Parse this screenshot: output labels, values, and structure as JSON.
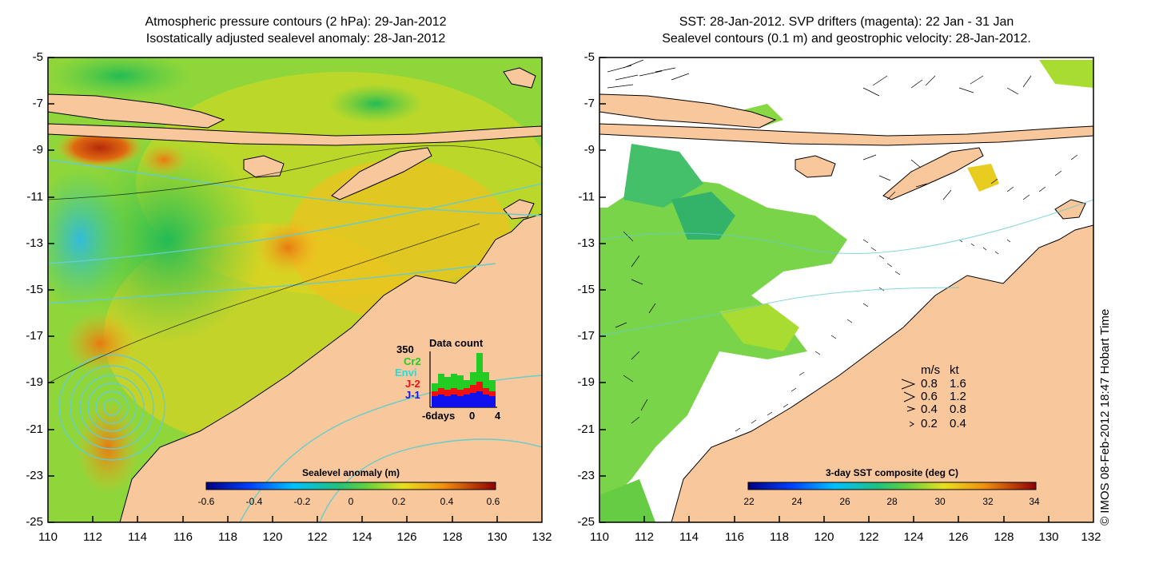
{
  "left_panel": {
    "title_line1": "Atmospheric pressure contours (2 hPa): 29-Jan-2012",
    "title_line2": "Isostatically adjusted sealevel anomaly: 28-Jan-2012",
    "y_ticks": [
      "-5",
      "-7",
      "-9",
      "-11",
      "-13",
      "-15",
      "-17",
      "-19",
      "-21",
      "-23",
      "-25"
    ],
    "x_ticks": [
      "110",
      "112",
      "114",
      "116",
      "118",
      "120",
      "122",
      "124",
      "126",
      "128",
      "130",
      "132"
    ],
    "colorbar": {
      "title": "Sealevel anomaly (m)",
      "ticks": [
        "-0.6",
        "-0.4",
        "-0.2",
        "0",
        "0.2",
        "0.4",
        "0.6"
      ]
    },
    "data_count": {
      "title": "Data count",
      "max_label": "350",
      "missions": [
        {
          "name": "Cr2",
          "color": "#22cc22"
        },
        {
          "name": "Envi",
          "color": "#22dddd"
        },
        {
          "name": "J-2",
          "color": "#ee1111"
        },
        {
          "name": "J-1",
          "color": "#1111ee"
        }
      ],
      "x_labels": [
        "-6days",
        "0",
        "4"
      ]
    }
  },
  "right_panel": {
    "title_line1": "SST: 28-Jan-2012. SVP drifters (magenta): 22 Jan - 31 Jan",
    "title_line2": "Sealevel contours (0.1 m) and geostrophic velocity: 28-Jan-2012.",
    "y_ticks": [
      "-5",
      "-7",
      "-9",
      "-11",
      "-13",
      "-15",
      "-17",
      "-19",
      "-21",
      "-23",
      "-25"
    ],
    "x_ticks": [
      "110",
      "112",
      "114",
      "116",
      "118",
      "120",
      "122",
      "124",
      "126",
      "128",
      "130",
      "132"
    ],
    "colorbar": {
      "title": "3-day SST composite (deg C)",
      "ticks": [
        "22",
        "24",
        "26",
        "28",
        "30",
        "32",
        "34"
      ]
    },
    "velocity_legend": {
      "header_ms": "m/s",
      "header_kt": "kt",
      "rows": [
        {
          "ms": "0.8",
          "kt": "1.6"
        },
        {
          "ms": "0.6",
          "kt": "1.2"
        },
        {
          "ms": "0.4",
          "kt": "0.8"
        },
        {
          "ms": "0.2",
          "kt": "0.4"
        }
      ]
    }
  },
  "credit": "© IMOS 08-Feb-2012 18:47 Hobart Time",
  "colors": {
    "land": "#f8c89c",
    "coast": "#000000",
    "contour": "#66cccc",
    "bg_green": "#99dd33",
    "bg_yellow": "#e8d820"
  }
}
